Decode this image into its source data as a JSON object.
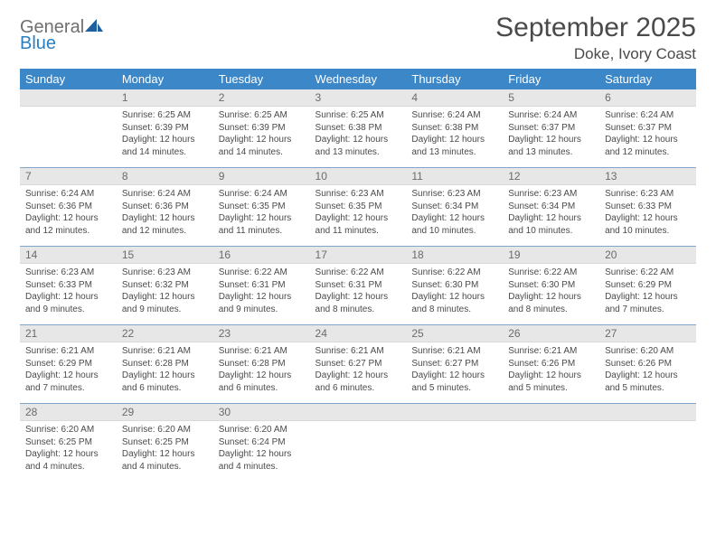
{
  "logo": {
    "line1": "General",
    "line2": "Blue",
    "color1": "#6f6f6f",
    "color2": "#2a7fc0",
    "sail_fill": "#1f5f9e"
  },
  "title": "September 2025",
  "location": "Doke, Ivory Coast",
  "colors": {
    "header_bg": "#3b87c8",
    "header_text": "#ffffff",
    "daynum_bg": "#e7e7e7",
    "daynum_text": "#6b6b6b",
    "body_text": "#4a4a4a",
    "separator": "#7fa6c8"
  },
  "day_headers": [
    "Sunday",
    "Monday",
    "Tuesday",
    "Wednesday",
    "Thursday",
    "Friday",
    "Saturday"
  ],
  "weeks": [
    {
      "nums": [
        "",
        "1",
        "2",
        "3",
        "4",
        "5",
        "6"
      ],
      "cells": [
        null,
        {
          "sunrise": "Sunrise: 6:25 AM",
          "sunset": "Sunset: 6:39 PM",
          "day1": "Daylight: 12 hours",
          "day2": "and 14 minutes."
        },
        {
          "sunrise": "Sunrise: 6:25 AM",
          "sunset": "Sunset: 6:39 PM",
          "day1": "Daylight: 12 hours",
          "day2": "and 14 minutes."
        },
        {
          "sunrise": "Sunrise: 6:25 AM",
          "sunset": "Sunset: 6:38 PM",
          "day1": "Daylight: 12 hours",
          "day2": "and 13 minutes."
        },
        {
          "sunrise": "Sunrise: 6:24 AM",
          "sunset": "Sunset: 6:38 PM",
          "day1": "Daylight: 12 hours",
          "day2": "and 13 minutes."
        },
        {
          "sunrise": "Sunrise: 6:24 AM",
          "sunset": "Sunset: 6:37 PM",
          "day1": "Daylight: 12 hours",
          "day2": "and 13 minutes."
        },
        {
          "sunrise": "Sunrise: 6:24 AM",
          "sunset": "Sunset: 6:37 PM",
          "day1": "Daylight: 12 hours",
          "day2": "and 12 minutes."
        }
      ]
    },
    {
      "nums": [
        "7",
        "8",
        "9",
        "10",
        "11",
        "12",
        "13"
      ],
      "cells": [
        {
          "sunrise": "Sunrise: 6:24 AM",
          "sunset": "Sunset: 6:36 PM",
          "day1": "Daylight: 12 hours",
          "day2": "and 12 minutes."
        },
        {
          "sunrise": "Sunrise: 6:24 AM",
          "sunset": "Sunset: 6:36 PM",
          "day1": "Daylight: 12 hours",
          "day2": "and 12 minutes."
        },
        {
          "sunrise": "Sunrise: 6:24 AM",
          "sunset": "Sunset: 6:35 PM",
          "day1": "Daylight: 12 hours",
          "day2": "and 11 minutes."
        },
        {
          "sunrise": "Sunrise: 6:23 AM",
          "sunset": "Sunset: 6:35 PM",
          "day1": "Daylight: 12 hours",
          "day2": "and 11 minutes."
        },
        {
          "sunrise": "Sunrise: 6:23 AM",
          "sunset": "Sunset: 6:34 PM",
          "day1": "Daylight: 12 hours",
          "day2": "and 10 minutes."
        },
        {
          "sunrise": "Sunrise: 6:23 AM",
          "sunset": "Sunset: 6:34 PM",
          "day1": "Daylight: 12 hours",
          "day2": "and 10 minutes."
        },
        {
          "sunrise": "Sunrise: 6:23 AM",
          "sunset": "Sunset: 6:33 PM",
          "day1": "Daylight: 12 hours",
          "day2": "and 10 minutes."
        }
      ]
    },
    {
      "nums": [
        "14",
        "15",
        "16",
        "17",
        "18",
        "19",
        "20"
      ],
      "cells": [
        {
          "sunrise": "Sunrise: 6:23 AM",
          "sunset": "Sunset: 6:33 PM",
          "day1": "Daylight: 12 hours",
          "day2": "and 9 minutes."
        },
        {
          "sunrise": "Sunrise: 6:23 AM",
          "sunset": "Sunset: 6:32 PM",
          "day1": "Daylight: 12 hours",
          "day2": "and 9 minutes."
        },
        {
          "sunrise": "Sunrise: 6:22 AM",
          "sunset": "Sunset: 6:31 PM",
          "day1": "Daylight: 12 hours",
          "day2": "and 9 minutes."
        },
        {
          "sunrise": "Sunrise: 6:22 AM",
          "sunset": "Sunset: 6:31 PM",
          "day1": "Daylight: 12 hours",
          "day2": "and 8 minutes."
        },
        {
          "sunrise": "Sunrise: 6:22 AM",
          "sunset": "Sunset: 6:30 PM",
          "day1": "Daylight: 12 hours",
          "day2": "and 8 minutes."
        },
        {
          "sunrise": "Sunrise: 6:22 AM",
          "sunset": "Sunset: 6:30 PM",
          "day1": "Daylight: 12 hours",
          "day2": "and 8 minutes."
        },
        {
          "sunrise": "Sunrise: 6:22 AM",
          "sunset": "Sunset: 6:29 PM",
          "day1": "Daylight: 12 hours",
          "day2": "and 7 minutes."
        }
      ]
    },
    {
      "nums": [
        "21",
        "22",
        "23",
        "24",
        "25",
        "26",
        "27"
      ],
      "cells": [
        {
          "sunrise": "Sunrise: 6:21 AM",
          "sunset": "Sunset: 6:29 PM",
          "day1": "Daylight: 12 hours",
          "day2": "and 7 minutes."
        },
        {
          "sunrise": "Sunrise: 6:21 AM",
          "sunset": "Sunset: 6:28 PM",
          "day1": "Daylight: 12 hours",
          "day2": "and 6 minutes."
        },
        {
          "sunrise": "Sunrise: 6:21 AM",
          "sunset": "Sunset: 6:28 PM",
          "day1": "Daylight: 12 hours",
          "day2": "and 6 minutes."
        },
        {
          "sunrise": "Sunrise: 6:21 AM",
          "sunset": "Sunset: 6:27 PM",
          "day1": "Daylight: 12 hours",
          "day2": "and 6 minutes."
        },
        {
          "sunrise": "Sunrise: 6:21 AM",
          "sunset": "Sunset: 6:27 PM",
          "day1": "Daylight: 12 hours",
          "day2": "and 5 minutes."
        },
        {
          "sunrise": "Sunrise: 6:21 AM",
          "sunset": "Sunset: 6:26 PM",
          "day1": "Daylight: 12 hours",
          "day2": "and 5 minutes."
        },
        {
          "sunrise": "Sunrise: 6:20 AM",
          "sunset": "Sunset: 6:26 PM",
          "day1": "Daylight: 12 hours",
          "day2": "and 5 minutes."
        }
      ]
    },
    {
      "nums": [
        "28",
        "29",
        "30",
        "",
        "",
        "",
        ""
      ],
      "cells": [
        {
          "sunrise": "Sunrise: 6:20 AM",
          "sunset": "Sunset: 6:25 PM",
          "day1": "Daylight: 12 hours",
          "day2": "and 4 minutes."
        },
        {
          "sunrise": "Sunrise: 6:20 AM",
          "sunset": "Sunset: 6:25 PM",
          "day1": "Daylight: 12 hours",
          "day2": "and 4 minutes."
        },
        {
          "sunrise": "Sunrise: 6:20 AM",
          "sunset": "Sunset: 6:24 PM",
          "day1": "Daylight: 12 hours",
          "day2": "and 4 minutes."
        },
        null,
        null,
        null,
        null
      ]
    }
  ]
}
